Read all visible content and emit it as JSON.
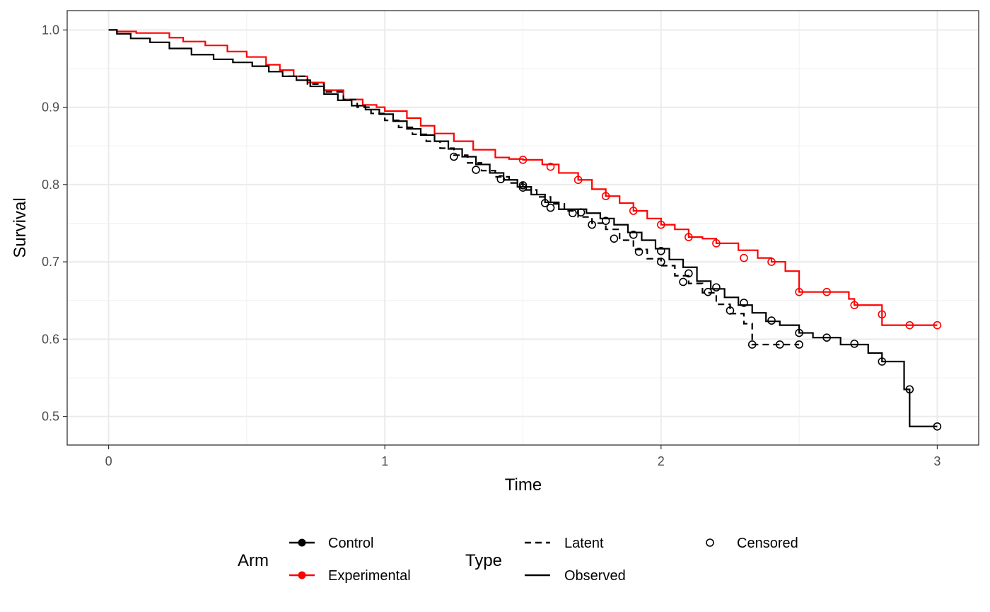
{
  "chart_data": {
    "type": "line",
    "title": "",
    "xlabel": "Time",
    "ylabel": "Survival",
    "xlim": [
      -0.15,
      3.15
    ],
    "ylim": [
      0.463,
      1.025
    ],
    "xticks": [
      0,
      1,
      2,
      3
    ],
    "xtick_labels": [
      "0",
      "1",
      "2",
      "3"
    ],
    "yticks": [
      0.5,
      0.6,
      0.7,
      0.8,
      0.9,
      1.0
    ],
    "ytick_labels": [
      "0.5",
      "0.6",
      "0.7",
      "0.8",
      "0.9",
      "1.0"
    ],
    "grid": true,
    "legend_position": "bottom",
    "colors": {
      "Control": "#000000",
      "Experimental": "#ff0000"
    },
    "series": [
      {
        "arm": "Experimental",
        "type": "Observed",
        "x": [
          0,
          0.03,
          0.1,
          0.22,
          0.27,
          0.35,
          0.43,
          0.5,
          0.57,
          0.62,
          0.67,
          0.72,
          0.78,
          0.85,
          0.92,
          0.97,
          1.0,
          1.08,
          1.13,
          1.18,
          1.25,
          1.32,
          1.4,
          1.45,
          1.5,
          1.57,
          1.63,
          1.7,
          1.75,
          1.8,
          1.85,
          1.9,
          1.95,
          2.0,
          2.05,
          2.1,
          2.15,
          2.2,
          2.28,
          2.35,
          2.4,
          2.45,
          2.5,
          2.6,
          2.68,
          2.7,
          2.8,
          2.9,
          3.0
        ],
        "y": [
          1.0,
          0.998,
          0.996,
          0.99,
          0.985,
          0.98,
          0.972,
          0.965,
          0.955,
          0.948,
          0.94,
          0.932,
          0.922,
          0.91,
          0.903,
          0.9,
          0.895,
          0.886,
          0.876,
          0.866,
          0.856,
          0.845,
          0.835,
          0.833,
          0.832,
          0.826,
          0.815,
          0.806,
          0.794,
          0.785,
          0.776,
          0.766,
          0.756,
          0.748,
          0.742,
          0.732,
          0.73,
          0.724,
          0.715,
          0.705,
          0.7,
          0.688,
          0.661,
          0.661,
          0.652,
          0.644,
          0.618,
          0.618,
          0.618
        ]
      },
      {
        "arm": "Control",
        "type": "Observed",
        "x": [
          0,
          0.03,
          0.08,
          0.15,
          0.22,
          0.3,
          0.38,
          0.45,
          0.52,
          0.58,
          0.63,
          0.68,
          0.73,
          0.78,
          0.83,
          0.88,
          0.93,
          0.98,
          1.03,
          1.08,
          1.13,
          1.18,
          1.23,
          1.28,
          1.33,
          1.38,
          1.43,
          1.48,
          1.53,
          1.58,
          1.63,
          1.68,
          1.73,
          1.78,
          1.83,
          1.88,
          1.93,
          1.98,
          2.03,
          2.08,
          2.13,
          2.18,
          2.23,
          2.28,
          2.33,
          2.38,
          2.43,
          2.5,
          2.55,
          2.65,
          2.75,
          2.8,
          2.88,
          2.9,
          3.0
        ],
        "y": [
          1.0,
          0.995,
          0.989,
          0.984,
          0.976,
          0.968,
          0.962,
          0.958,
          0.953,
          0.946,
          0.94,
          0.935,
          0.927,
          0.917,
          0.909,
          0.902,
          0.897,
          0.891,
          0.882,
          0.872,
          0.864,
          0.856,
          0.846,
          0.836,
          0.826,
          0.815,
          0.806,
          0.797,
          0.787,
          0.777,
          0.768,
          0.768,
          0.763,
          0.756,
          0.748,
          0.738,
          0.728,
          0.717,
          0.703,
          0.693,
          0.675,
          0.665,
          0.654,
          0.644,
          0.634,
          0.623,
          0.618,
          0.608,
          0.602,
          0.593,
          0.582,
          0.571,
          0.535,
          0.487,
          0.487
        ]
      },
      {
        "arm": "Control",
        "type": "Latent",
        "x": [
          0.65,
          0.72,
          0.78,
          0.85,
          0.9,
          0.95,
          1.0,
          1.05,
          1.1,
          1.15,
          1.2,
          1.25,
          1.3,
          1.35,
          1.4,
          1.45,
          1.5,
          1.55,
          1.6,
          1.65,
          1.7,
          1.75,
          1.8,
          1.85,
          1.9,
          1.95,
          2.0,
          2.05,
          2.1,
          2.15,
          2.2,
          2.25,
          2.3,
          2.33,
          2.5
        ],
        "y": [
          0.94,
          0.93,
          0.92,
          0.91,
          0.9,
          0.892,
          0.883,
          0.874,
          0.865,
          0.856,
          0.847,
          0.838,
          0.828,
          0.818,
          0.81,
          0.802,
          0.793,
          0.784,
          0.775,
          0.766,
          0.758,
          0.75,
          0.742,
          0.728,
          0.716,
          0.704,
          0.695,
          0.682,
          0.672,
          0.66,
          0.645,
          0.633,
          0.62,
          0.593,
          0.593
        ]
      }
    ],
    "censored": [
      {
        "arm": "Experimental",
        "x": [
          1.5,
          1.6,
          1.7,
          1.8,
          1.9,
          2.0,
          2.1,
          2.2,
          2.3,
          2.4,
          2.5,
          2.6,
          2.7,
          2.8,
          2.9,
          3.0
        ],
        "y": [
          0.832,
          0.823,
          0.806,
          0.785,
          0.766,
          0.748,
          0.732,
          0.724,
          0.705,
          0.7,
          0.661,
          0.661,
          0.644,
          0.632,
          0.618,
          0.618
        ]
      },
      {
        "arm": "Control",
        "x": [
          1.25,
          1.33,
          1.42,
          1.5,
          1.5,
          1.58,
          1.6,
          1.68,
          1.71,
          1.75,
          1.8,
          1.83,
          1.9,
          1.92,
          2.0,
          2.0,
          2.08,
          2.1,
          2.17,
          2.2,
          2.25,
          2.3,
          2.33,
          2.4,
          2.43,
          2.5,
          2.5,
          2.6,
          2.7,
          2.8,
          2.9,
          3.0
        ],
        "y": [
          0.836,
          0.819,
          0.807,
          0.799,
          0.796,
          0.776,
          0.77,
          0.763,
          0.764,
          0.748,
          0.753,
          0.73,
          0.735,
          0.713,
          0.714,
          0.7,
          0.674,
          0.685,
          0.661,
          0.667,
          0.637,
          0.647,
          0.593,
          0.624,
          0.593,
          0.608,
          0.593,
          0.602,
          0.594,
          0.571,
          0.535,
          0.487
        ]
      }
    ],
    "legend": {
      "arm_title": "Arm",
      "arm_items": [
        "Control",
        "Experimental"
      ],
      "type_title": "Type",
      "type_items": [
        "Latent",
        "Observed"
      ],
      "censored_label": "Censored"
    }
  }
}
